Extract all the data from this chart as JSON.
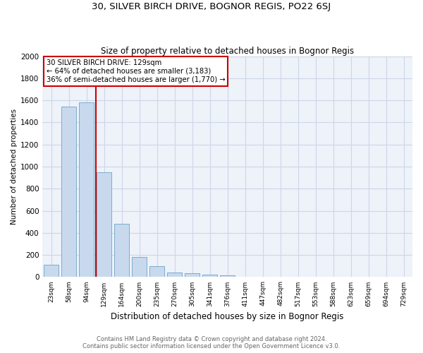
{
  "title": "30, SILVER BIRCH DRIVE, BOGNOR REGIS, PO22 6SJ",
  "subtitle": "Size of property relative to detached houses in Bognor Regis",
  "xlabel": "Distribution of detached houses by size in Bognor Regis",
  "ylabel": "Number of detached properties",
  "footnote1": "Contains HM Land Registry data © Crown copyright and database right 2024.",
  "footnote2": "Contains public sector information licensed under the Open Government Licence v3.0.",
  "bar_color": "#c8d9ee",
  "bar_edge_color": "#7aacce",
  "annotation_line_color": "#cc0000",
  "annotation_box_color": "#cc0000",
  "annotation_text": "30 SILVER BIRCH DRIVE: 129sqm\n← 64% of detached houses are smaller (3,183)\n36% of semi-detached houses are larger (1,770) →",
  "property_bin_index": 3,
  "categories": [
    "23sqm",
    "58sqm",
    "94sqm",
    "129sqm",
    "164sqm",
    "200sqm",
    "235sqm",
    "270sqm",
    "305sqm",
    "341sqm",
    "376sqm",
    "411sqm",
    "447sqm",
    "482sqm",
    "517sqm",
    "553sqm",
    "588sqm",
    "623sqm",
    "659sqm",
    "694sqm",
    "729sqm"
  ],
  "values": [
    110,
    1545,
    1580,
    950,
    480,
    180,
    100,
    40,
    35,
    20,
    15,
    0,
    0,
    0,
    0,
    0,
    0,
    0,
    0,
    0,
    0
  ],
  "ylim": [
    0,
    2000
  ],
  "yticks": [
    0,
    200,
    400,
    600,
    800,
    1000,
    1200,
    1400,
    1600,
    1800,
    2000
  ],
  "grid_color": "#cdd5e8",
  "background_color": "#eef2f9",
  "title_fontsize": 9.5,
  "subtitle_fontsize": 8.5
}
